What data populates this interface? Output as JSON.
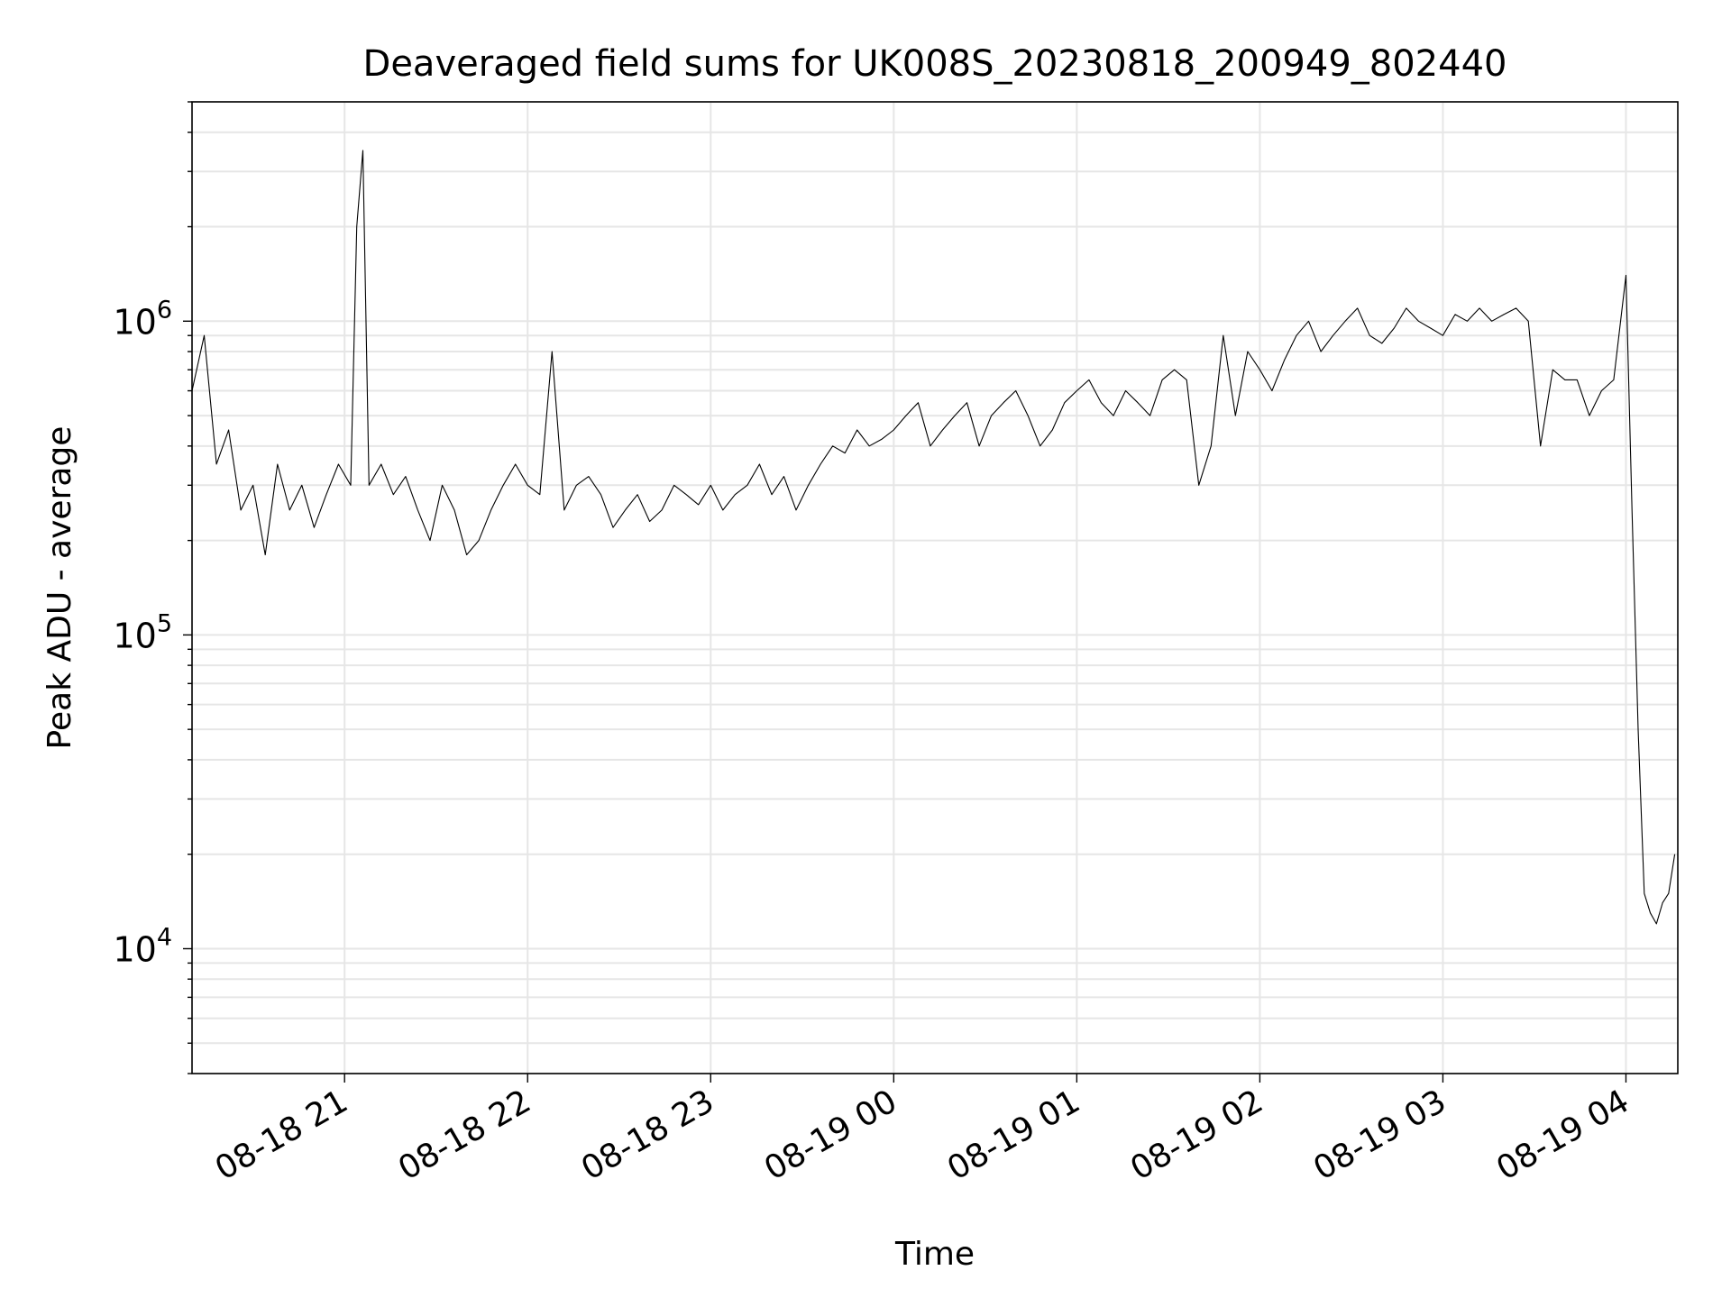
{
  "chart_data": {
    "type": "line",
    "title": "Deaveraged field sums for UK008S_20230818_200949_802440",
    "xlabel": "Time",
    "ylabel": "Peak ADU - average",
    "y_scale": "log",
    "ylim": [
      4000,
      5000000
    ],
    "xlim": [
      "2023-08-18 20:10",
      "2023-08-19 04:17"
    ],
    "grid": true,
    "legend": "none",
    "line_color": "#000000",
    "grid_color": "#e6e6e6",
    "x_ticks": [
      {
        "t": "2023-08-18 21:00",
        "label": "08-18 21"
      },
      {
        "t": "2023-08-18 22:00",
        "label": "08-18 22"
      },
      {
        "t": "2023-08-18 23:00",
        "label": "08-18 23"
      },
      {
        "t": "2023-08-19 00:00",
        "label": "08-19 00"
      },
      {
        "t": "2023-08-19 01:00",
        "label": "08-19 01"
      },
      {
        "t": "2023-08-19 02:00",
        "label": "08-19 02"
      },
      {
        "t": "2023-08-19 03:00",
        "label": "08-19 03"
      },
      {
        "t": "2023-08-19 04:00",
        "label": "08-19 04"
      }
    ],
    "y_ticks": [
      {
        "value": 10000,
        "base": "10",
        "exp": "4"
      },
      {
        "value": 100000,
        "base": "10",
        "exp": "5"
      },
      {
        "value": 1000000,
        "base": "10",
        "exp": "6"
      }
    ],
    "series": [
      {
        "x": [
          "2023-08-18 20:10",
          "2023-08-18 20:14",
          "2023-08-18 20:18",
          "2023-08-18 20:22",
          "2023-08-18 20:26",
          "2023-08-18 20:30",
          "2023-08-18 20:34",
          "2023-08-18 20:38",
          "2023-08-18 20:42",
          "2023-08-18 20:46",
          "2023-08-18 20:50",
          "2023-08-18 20:54",
          "2023-08-18 20:58",
          "2023-08-18 21:02",
          "2023-08-18 21:04",
          "2023-08-18 21:06",
          "2023-08-18 21:08",
          "2023-08-18 21:12",
          "2023-08-18 21:16",
          "2023-08-18 21:20",
          "2023-08-18 21:24",
          "2023-08-18 21:28",
          "2023-08-18 21:32",
          "2023-08-18 21:36",
          "2023-08-18 21:40",
          "2023-08-18 21:44",
          "2023-08-18 21:48",
          "2023-08-18 21:52",
          "2023-08-18 21:56",
          "2023-08-18 22:00",
          "2023-08-18 22:04",
          "2023-08-18 22:08",
          "2023-08-18 22:12",
          "2023-08-18 22:16",
          "2023-08-18 22:20",
          "2023-08-18 22:24",
          "2023-08-18 22:28",
          "2023-08-18 22:32",
          "2023-08-18 22:36",
          "2023-08-18 22:40",
          "2023-08-18 22:44",
          "2023-08-18 22:48",
          "2023-08-18 22:52",
          "2023-08-18 22:56",
          "2023-08-18 23:00",
          "2023-08-18 23:04",
          "2023-08-18 23:08",
          "2023-08-18 23:12",
          "2023-08-18 23:16",
          "2023-08-18 23:20",
          "2023-08-18 23:24",
          "2023-08-18 23:28",
          "2023-08-18 23:32",
          "2023-08-18 23:36",
          "2023-08-18 23:40",
          "2023-08-18 23:44",
          "2023-08-18 23:48",
          "2023-08-18 23:52",
          "2023-08-18 23:56",
          "2023-08-19 00:00",
          "2023-08-19 00:04",
          "2023-08-19 00:08",
          "2023-08-19 00:12",
          "2023-08-19 00:16",
          "2023-08-19 00:20",
          "2023-08-19 00:24",
          "2023-08-19 00:28",
          "2023-08-19 00:32",
          "2023-08-19 00:36",
          "2023-08-19 00:40",
          "2023-08-19 00:44",
          "2023-08-19 00:48",
          "2023-08-19 00:52",
          "2023-08-19 00:56",
          "2023-08-19 01:00",
          "2023-08-19 01:04",
          "2023-08-19 01:08",
          "2023-08-19 01:12",
          "2023-08-19 01:16",
          "2023-08-19 01:20",
          "2023-08-19 01:24",
          "2023-08-19 01:28",
          "2023-08-19 01:32",
          "2023-08-19 01:36",
          "2023-08-19 01:40",
          "2023-08-19 01:44",
          "2023-08-19 01:48",
          "2023-08-19 01:52",
          "2023-08-19 01:56",
          "2023-08-19 02:00",
          "2023-08-19 02:04",
          "2023-08-19 02:08",
          "2023-08-19 02:12",
          "2023-08-19 02:16",
          "2023-08-19 02:20",
          "2023-08-19 02:24",
          "2023-08-19 02:28",
          "2023-08-19 02:32",
          "2023-08-19 02:36",
          "2023-08-19 02:40",
          "2023-08-19 02:44",
          "2023-08-19 02:48",
          "2023-08-19 02:52",
          "2023-08-19 02:56",
          "2023-08-19 03:00",
          "2023-08-19 03:04",
          "2023-08-19 03:08",
          "2023-08-19 03:12",
          "2023-08-19 03:16",
          "2023-08-19 03:20",
          "2023-08-19 03:24",
          "2023-08-19 03:28",
          "2023-08-19 03:32",
          "2023-08-19 03:36",
          "2023-08-19 03:40",
          "2023-08-19 03:44",
          "2023-08-19 03:48",
          "2023-08-19 03:52",
          "2023-08-19 03:56",
          "2023-08-19 04:00",
          "2023-08-19 04:02",
          "2023-08-19 04:04",
          "2023-08-19 04:06",
          "2023-08-19 04:08",
          "2023-08-19 04:10",
          "2023-08-19 04:12",
          "2023-08-19 04:14",
          "2023-08-19 04:16"
        ],
        "y": [
          600000,
          900000,
          350000,
          450000,
          250000,
          300000,
          180000,
          350000,
          250000,
          300000,
          220000,
          280000,
          350000,
          300000,
          2000000,
          3500000,
          300000,
          350000,
          280000,
          320000,
          250000,
          200000,
          300000,
          250000,
          180000,
          200000,
          250000,
          300000,
          350000,
          300000,
          280000,
          800000,
          250000,
          300000,
          320000,
          280000,
          220000,
          250000,
          280000,
          230000,
          250000,
          300000,
          280000,
          260000,
          300000,
          250000,
          280000,
          300000,
          350000,
          280000,
          320000,
          250000,
          300000,
          350000,
          400000,
          380000,
          450000,
          400000,
          420000,
          450000,
          500000,
          550000,
          400000,
          450000,
          500000,
          550000,
          400000,
          500000,
          550000,
          600000,
          500000,
          400000,
          450000,
          550000,
          600000,
          650000,
          550000,
          500000,
          600000,
          550000,
          500000,
          650000,
          700000,
          650000,
          300000,
          400000,
          900000,
          500000,
          800000,
          700000,
          600000,
          750000,
          900000,
          1000000,
          800000,
          900000,
          1000000,
          1100000,
          900000,
          850000,
          950000,
          1100000,
          1000000,
          950000,
          900000,
          1050000,
          1000000,
          1100000,
          1000000,
          1050000,
          1100000,
          1000000,
          400000,
          700000,
          650000,
          650000,
          500000,
          600000,
          650000,
          1400000,
          250000,
          50000,
          15000,
          13000,
          12000,
          14000,
          15000,
          20000
        ]
      }
    ]
  }
}
